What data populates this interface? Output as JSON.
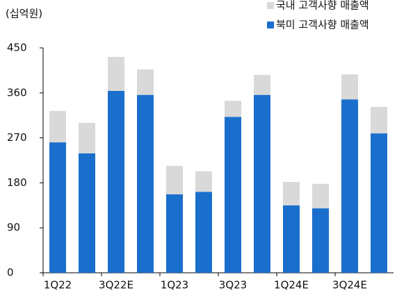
{
  "chart_data": {
    "type": "stacked_bar",
    "ylabel": "(십억원)",
    "categories": [
      "1Q22",
      null,
      "3Q22E",
      null,
      "1Q23",
      null,
      "3Q23",
      null,
      "1Q24E",
      null,
      "3Q24E",
      null
    ],
    "series": [
      {
        "name": "북미 고객사향 매출액",
        "color": "#1a6fcc",
        "values": [
          261,
          239,
          364,
          356,
          157,
          162,
          312,
          356,
          135,
          129,
          347,
          279
        ]
      },
      {
        "name": "국내 고객사향 매출액",
        "color": "#d9d9d9",
        "values": [
          63,
          61,
          68,
          51,
          57,
          41,
          32,
          40,
          47,
          49,
          50,
          53
        ]
      }
    ],
    "ylim": [
      0,
      450
    ],
    "yticks": [
      0,
      90,
      180,
      270,
      360,
      450
    ],
    "grid": false
  }
}
